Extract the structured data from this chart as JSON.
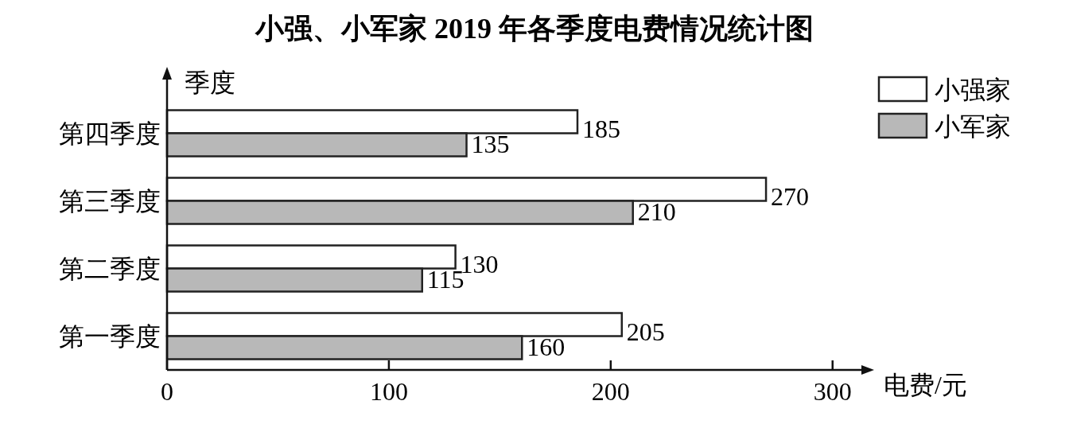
{
  "chart_data": {
    "type": "bar",
    "orientation": "horizontal",
    "title": "小强、小军家 2019 年各季度电费情况统计图",
    "xlabel": "电费/元",
    "ylabel": "季度",
    "categories": [
      "第四季度",
      "第三季度",
      "第二季度",
      "第一季度"
    ],
    "series": [
      {
        "name": "小强家",
        "color": "#ffffff",
        "values": [
          185,
          270,
          130,
          205
        ]
      },
      {
        "name": "小军家",
        "color": "#b8b8b8",
        "values": [
          135,
          210,
          115,
          160
        ]
      }
    ],
    "xlim": [
      0,
      313
    ],
    "xticks": [
      0,
      100,
      200,
      300
    ],
    "data_labels": true,
    "legend": "top right"
  }
}
